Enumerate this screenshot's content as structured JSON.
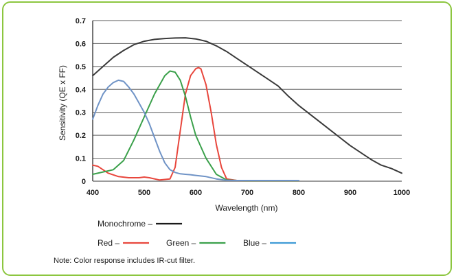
{
  "chart_data": {
    "type": "line",
    "xlabel": "Wavelength (nm)",
    "ylabel": "Sensitivity (QE x FF)",
    "xlim": [
      400,
      1000
    ],
    "ylim": [
      0,
      0.7
    ],
    "xticks": [
      "400",
      "500",
      "600",
      "700",
      "800",
      "900",
      "1000"
    ],
    "yticks": [
      "0",
      "0.1",
      "0.2",
      "0.3",
      "0.4",
      "0.5",
      "0.6",
      "0.7"
    ],
    "grid": true,
    "legend_position": "bottom",
    "series": [
      {
        "name": "Monochrome",
        "color": "#3a3a3a",
        "x": [
          400,
          420,
          440,
          460,
          480,
          500,
          520,
          540,
          560,
          580,
          600,
          620,
          640,
          660,
          680,
          700,
          720,
          740,
          760,
          780,
          800,
          820,
          840,
          860,
          880,
          900,
          920,
          940,
          960,
          980,
          1000
        ],
        "y": [
          0.46,
          0.5,
          0.54,
          0.57,
          0.595,
          0.61,
          0.618,
          0.622,
          0.624,
          0.625,
          0.62,
          0.61,
          0.59,
          0.565,
          0.535,
          0.505,
          0.475,
          0.445,
          0.415,
          0.37,
          0.33,
          0.295,
          0.26,
          0.225,
          0.19,
          0.155,
          0.125,
          0.095,
          0.07,
          0.055,
          0.035
        ]
      },
      {
        "name": "Red",
        "color": "#e8463c",
        "x": [
          400,
          410,
          420,
          430,
          450,
          470,
          490,
          500,
          510,
          530,
          550,
          560,
          570,
          580,
          590,
          600,
          605,
          610,
          620,
          630,
          640,
          650,
          660,
          680,
          700,
          750,
          800
        ],
        "y": [
          0.07,
          0.065,
          0.05,
          0.035,
          0.02,
          0.015,
          0.015,
          0.018,
          0.015,
          0.005,
          0.01,
          0.06,
          0.22,
          0.38,
          0.46,
          0.49,
          0.495,
          0.49,
          0.42,
          0.3,
          0.16,
          0.06,
          0.01,
          0.003,
          0.002,
          0.002,
          0.002
        ]
      },
      {
        "name": "Green",
        "color": "#3aa04a",
        "x": [
          400,
          420,
          440,
          460,
          480,
          500,
          520,
          540,
          550,
          560,
          570,
          580,
          590,
          600,
          620,
          640,
          660,
          680,
          700,
          750,
          800
        ],
        "y": [
          0.03,
          0.04,
          0.05,
          0.09,
          0.18,
          0.28,
          0.38,
          0.46,
          0.48,
          0.475,
          0.44,
          0.37,
          0.28,
          0.2,
          0.1,
          0.03,
          0.005,
          0.003,
          0.002,
          0.002,
          0.002
        ]
      },
      {
        "name": "Blue",
        "color": "#6f93c6",
        "x": [
          400,
          410,
          420,
          430,
          440,
          450,
          460,
          470,
          480,
          490,
          500,
          510,
          520,
          530,
          540,
          550,
          560,
          570,
          580,
          590,
          600,
          620,
          640,
          660,
          680,
          700,
          750,
          800
        ],
        "y": [
          0.27,
          0.33,
          0.38,
          0.41,
          0.43,
          0.44,
          0.435,
          0.41,
          0.38,
          0.34,
          0.3,
          0.25,
          0.19,
          0.13,
          0.08,
          0.05,
          0.038,
          0.032,
          0.03,
          0.028,
          0.025,
          0.02,
          0.01,
          0.004,
          0.003,
          0.003,
          0.003,
          0.003
        ]
      }
    ],
    "legend": {
      "rows": [
        [
          {
            "label": "Monochrome –",
            "color": "#1a1a1a"
          }
        ],
        [
          {
            "label": "Red –",
            "color": "#e8463c"
          },
          {
            "label": "Green –",
            "color": "#3aa04a"
          },
          {
            "label": "Blue –",
            "color": "#3e9ad6"
          }
        ]
      ]
    },
    "note": "Note: Color response includes IR-cut filter."
  },
  "colors": {
    "frame_border": "#8cc63f",
    "grid": "#7a7a7a"
  }
}
